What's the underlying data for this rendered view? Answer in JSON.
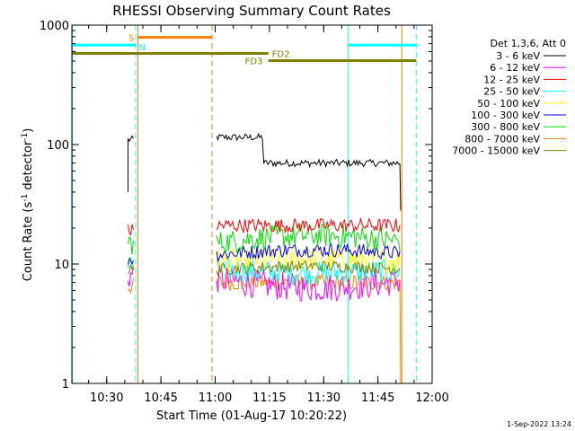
{
  "chart_data": {
    "type": "line",
    "title": "RHESSI Observing Summary Count Rates",
    "xlabel": "Start Time (01-Aug-17 10:20:22)",
    "ylabel_prefix": "Count Rate (s",
    "ylabel_sup": "-1",
    "ylabel_mid": " detector",
    "ylabel_sup2": "-1",
    "ylabel_suffix": ")",
    "yscale": "log",
    "ylim": [
      1,
      1000
    ],
    "xlim_minutes": [
      20.37,
      120
    ],
    "x_ticks": [
      {
        "m": 30,
        "label": "10:30"
      },
      {
        "m": 45,
        "label": "10:45"
      },
      {
        "m": 60,
        "label": "11:00"
      },
      {
        "m": 75,
        "label": "11:15"
      },
      {
        "m": 90,
        "label": "11:30"
      },
      {
        "m": 105,
        "label": "11:45"
      },
      {
        "m": 120,
        "label": "12:00"
      }
    ],
    "y_ticks": [
      {
        "v": 1,
        "label": "1"
      },
      {
        "v": 10,
        "label": "10"
      },
      {
        "v": 100,
        "label": "100"
      },
      {
        "v": 1000,
        "label": "1000"
      }
    ],
    "legend_header": "Det 1,3,6, Att 0",
    "series": [
      {
        "name": "3 - 6 keV",
        "color": "#000000",
        "level1": 110,
        "level2a": 115,
        "level2b": 70,
        "noise": 0.03
      },
      {
        "name": "6 - 12 keV",
        "color": "#ff00ff",
        "level1": 8,
        "level2a": 7.5,
        "level2b": 6.5,
        "noise": 0.12
      },
      {
        "name": "12 - 25 keV",
        "color": "#ff0000",
        "level1": 19,
        "level2a": 21,
        "level2b": 21,
        "noise": 0.06
      },
      {
        "name": "25 - 50 keV",
        "color": "#00ffff",
        "level1": 10,
        "level2a": 9,
        "level2b": 8.5,
        "noise": 0.1
      },
      {
        "name": "50 - 100 keV",
        "color": "#ffff00",
        "level1": 11,
        "level2a": 10.5,
        "level2b": 11,
        "noise": 0.1
      },
      {
        "name": "100 - 300 keV",
        "color": "#0000ff",
        "level1": 11,
        "level2a": 12,
        "level2b": 13,
        "noise": 0.06
      },
      {
        "name": "300 - 800 keV",
        "color": "#00e000",
        "level1": 15,
        "level2a": 15,
        "level2b": 17,
        "noise": 0.1
      },
      {
        "name": "800 - 7000 keV",
        "color": "#ff8000",
        "level1": 6.5,
        "level2a": 7,
        "level2b": 7,
        "noise": 0.07
      },
      {
        "name": "7000 - 15000 keV",
        "color": "#808000",
        "level1": 9,
        "level2a": 9,
        "level2b": 9.5,
        "noise": 0.05
      }
    ],
    "data_segments": [
      {
        "start_m": 35.9,
        "end_m": 37.4
      },
      {
        "start_m": 60.4,
        "end_m": 111.3
      }
    ],
    "black_step_m": 73.3,
    "vertical_lines": [
      {
        "m": 20.37,
        "color": "#00ffff",
        "style": "solid"
      },
      {
        "m": 37.9,
        "color": "#00ffff",
        "style": "dashed"
      },
      {
        "m": 38.5,
        "color": "#ff8000",
        "style": "solid"
      },
      {
        "m": 59.0,
        "color": "#ff8000",
        "style": "dashed"
      },
      {
        "m": 96.7,
        "color": "#00ffff",
        "style": "solid"
      },
      {
        "m": 111.5,
        "color": "#ff8000",
        "style": "solid"
      },
      {
        "m": 115.6,
        "color": "#00ffff",
        "style": "dashed"
      }
    ],
    "flag_bars": [
      {
        "label": "",
        "color": "#00ffff",
        "start_m": 20.37,
        "end_m": 37.9,
        "value": 680
      },
      {
        "label": "",
        "color": "#00ffff",
        "start_m": 96.7,
        "end_m": 115.6,
        "value": 680
      },
      {
        "label": "S",
        "color": "#ff8000",
        "start_m": 38.5,
        "end_m": 59.0,
        "value": 790
      },
      {
        "label": "N",
        "color": "#00ffff",
        "start_m": 37.9,
        "end_m": 37.9,
        "value": 730
      },
      {
        "label": "FD2",
        "color": "#808000",
        "start_m": 20.37,
        "end_m": 74.7,
        "value": 580
      },
      {
        "label": "FD3",
        "color": "#808000",
        "start_m": 74.7,
        "end_m": 115.6,
        "value": 505
      }
    ]
  },
  "footer": {
    "timestamp": "1-Sep-2022 13:24"
  }
}
